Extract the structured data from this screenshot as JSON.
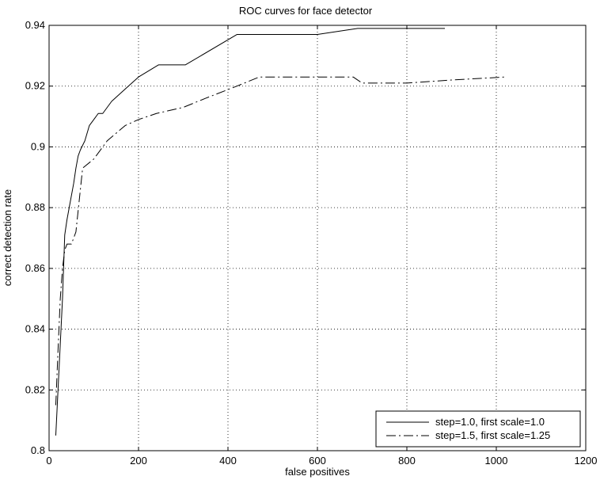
{
  "chart_data": {
    "type": "line",
    "title": "ROC curves for face detector",
    "xlabel": "false positives",
    "ylabel": "correct detection rate",
    "xlim": [
      0,
      1200
    ],
    "ylim": [
      0.8,
      0.94
    ],
    "xticks": [
      0,
      200,
      400,
      600,
      800,
      1000,
      1200
    ],
    "yticks": [
      0.8,
      0.82,
      0.84,
      0.86,
      0.88,
      0.9,
      0.92,
      0.94
    ],
    "xtick_labels": [
      "0",
      "200",
      "400",
      "600",
      "800",
      "1000",
      "1200"
    ],
    "ytick_labels": [
      "0.8",
      "0.82",
      "0.84",
      "0.86",
      "0.88",
      "0.9",
      "0.92",
      "0.94"
    ],
    "grid": true,
    "legend_position": "bottom-right",
    "series": [
      {
        "name": "step=1.0, first scale=1.0",
        "line_style": "solid",
        "color": "#000000",
        "x": [
          15,
          20,
          25,
          30,
          35,
          40,
          45,
          55,
          60,
          65,
          70,
          80,
          90,
          100,
          110,
          120,
          140,
          170,
          200,
          245,
          305,
          420,
          600,
          690,
          885
        ],
        "y": [
          0.805,
          0.82,
          0.835,
          0.85,
          0.871,
          0.876,
          0.88,
          0.888,
          0.893,
          0.897,
          0.899,
          0.902,
          0.907,
          0.909,
          0.911,
          0.911,
          0.915,
          0.919,
          0.923,
          0.927,
          0.927,
          0.937,
          0.937,
          0.939,
          0.939
        ]
      },
      {
        "name": "step=1.5, first scale=1.25",
        "line_style": "dash-dot",
        "color": "#000000",
        "x": [
          15,
          20,
          25,
          30,
          35,
          40,
          50,
          60,
          75,
          100,
          130,
          170,
          200,
          240,
          300,
          350,
          420,
          470,
          550,
          600,
          680,
          700,
          800,
          900,
          1020
        ],
        "y": [
          0.815,
          0.833,
          0.85,
          0.86,
          0.866,
          0.868,
          0.868,
          0.872,
          0.893,
          0.896,
          0.902,
          0.907,
          0.909,
          0.911,
          0.913,
          0.916,
          0.92,
          0.923,
          0.923,
          0.923,
          0.923,
          0.921,
          0.921,
          0.922,
          0.923
        ]
      }
    ]
  }
}
